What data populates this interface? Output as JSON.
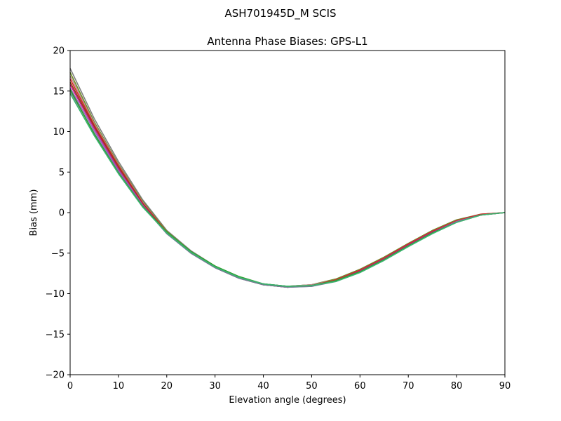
{
  "chart_data": {
    "type": "line",
    "suptitle": "ASH701945D_M    SCIS",
    "title": "Antenna Phase Biases: GPS-L1",
    "xlabel": "Elevation angle (degrees)",
    "ylabel": "Bias (mm)",
    "xlim": [
      0,
      90
    ],
    "ylim": [
      -20,
      20
    ],
    "xticks": [
      0,
      10,
      20,
      30,
      40,
      50,
      60,
      70,
      80,
      90
    ],
    "xtick_labels": [
      "0",
      "10",
      "20",
      "30",
      "40",
      "50",
      "60",
      "70",
      "80",
      "90"
    ],
    "yticks": [
      -20,
      -15,
      -10,
      -5,
      0,
      5,
      10,
      15,
      20
    ],
    "ytick_labels": [
      "−20",
      "−15",
      "−10",
      "−5",
      "0",
      "5",
      "10",
      "15",
      "20"
    ],
    "grid": false,
    "legend": "none",
    "x": [
      0,
      5,
      10,
      15,
      20,
      25,
      30,
      35,
      40,
      45,
      50,
      55,
      60,
      65,
      70,
      75,
      80,
      85,
      90
    ],
    "series": [
      {
        "color": "#808080",
        "values": [
          17.8,
          11.6,
          6.3,
          1.6,
          -2.2,
          -4.7,
          -6.6,
          -8.0,
          -8.8,
          -9.1,
          -8.9,
          -8.2,
          -7.0,
          -5.5,
          -3.8,
          -2.2,
          -0.9,
          -0.2,
          0.0
        ]
      },
      {
        "color": "#6b8e23",
        "values": [
          17.3,
          11.2,
          6.0,
          1.4,
          -2.3,
          -4.8,
          -6.6,
          -8.0,
          -8.8,
          -9.1,
          -8.9,
          -8.2,
          -7.0,
          -5.5,
          -3.8,
          -2.2,
          -0.9,
          -0.2,
          0.0
        ]
      },
      {
        "color": "#bc8f8f",
        "values": [
          16.9,
          11.0,
          5.9,
          1.3,
          -2.4,
          -4.8,
          -6.7,
          -8.0,
          -8.8,
          -9.1,
          -8.9,
          -8.3,
          -7.1,
          -5.6,
          -3.9,
          -2.3,
          -1.0,
          -0.2,
          0.0
        ]
      },
      {
        "color": "#d62728",
        "values": [
          16.5,
          10.8,
          5.8,
          1.2,
          -2.4,
          -4.9,
          -6.7,
          -8.0,
          -8.9,
          -9.2,
          -9.0,
          -8.3,
          -7.1,
          -5.6,
          -3.9,
          -2.3,
          -1.0,
          -0.2,
          0.0
        ]
      },
      {
        "color": "#8b4513",
        "values": [
          16.1,
          10.6,
          5.6,
          1.1,
          -2.5,
          -4.9,
          -6.8,
          -8.1,
          -8.9,
          -9.2,
          -9.0,
          -8.4,
          -7.2,
          -5.7,
          -4.0,
          -2.4,
          -1.1,
          -0.3,
          0.0
        ]
      },
      {
        "color": "#c71585",
        "values": [
          15.8,
          10.4,
          5.4,
          1.0,
          -2.5,
          -5.0,
          -6.8,
          -8.1,
          -8.9,
          -9.2,
          -9.0,
          -8.4,
          -7.2,
          -5.7,
          -4.0,
          -2.4,
          -1.1,
          -0.3,
          0.0
        ]
      },
      {
        "color": "#9467bd",
        "values": [
          15.4,
          10.1,
          5.2,
          0.9,
          -2.6,
          -5.0,
          -6.8,
          -8.1,
          -8.9,
          -9.2,
          -9.1,
          -8.4,
          -7.3,
          -5.8,
          -4.1,
          -2.5,
          -1.1,
          -0.3,
          0.0
        ]
      },
      {
        "color": "#708090",
        "values": [
          15.0,
          9.8,
          5.0,
          0.8,
          -2.6,
          -5.0,
          -6.8,
          -8.1,
          -8.9,
          -9.2,
          -9.1,
          -8.5,
          -7.3,
          -5.8,
          -4.1,
          -2.5,
          -1.2,
          -0.3,
          0.0
        ]
      },
      {
        "color": "#2ca02c",
        "values": [
          15.2,
          9.7,
          4.9,
          0.8,
          -2.4,
          -4.8,
          -6.6,
          -7.9,
          -8.8,
          -9.1,
          -9.0,
          -8.4,
          -7.3,
          -5.8,
          -4.1,
          -2.5,
          -1.2,
          -0.3,
          0.0
        ]
      },
      {
        "color": "#3cb371",
        "values": [
          14.7,
          9.5,
          4.8,
          0.7,
          -2.5,
          -4.9,
          -6.7,
          -8.0,
          -8.8,
          -9.1,
          -9.0,
          -8.5,
          -7.4,
          -5.9,
          -4.2,
          -2.6,
          -1.2,
          -0.3,
          0.0
        ]
      }
    ]
  }
}
